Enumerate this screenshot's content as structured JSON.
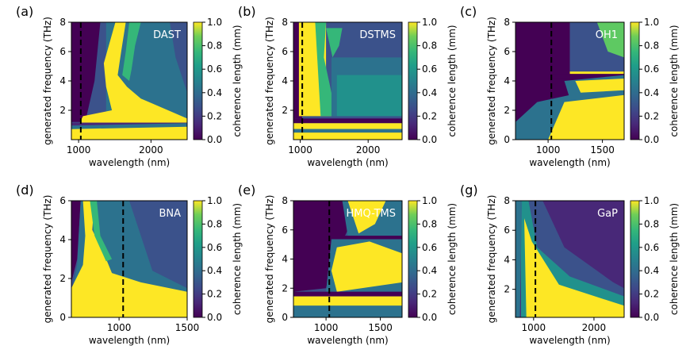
{
  "colorbar": {
    "label": "coherence length (mm)",
    "ticks": [
      "0.0",
      "0.2",
      "0.4",
      "0.6",
      "0.8",
      "1.0"
    ]
  },
  "chart_data": [
    {
      "type": "heatmap",
      "panel": "(a)",
      "material": "DAST",
      "xlabel": "wavelength (nm)",
      "ylabel": "generated frequency (THz)",
      "xlim": [
        900,
        2500
      ],
      "ylim": [
        0,
        8
      ],
      "xticks": [
        "1000",
        "2000"
      ],
      "yticks": [
        "2",
        "4",
        "6",
        "8"
      ],
      "dashed_line_x": 1030,
      "value_range": [
        0,
        1.0
      ]
    },
    {
      "type": "heatmap",
      "panel": "(b)",
      "material": "DSTMS",
      "xlabel": "wavelength (nm)",
      "ylabel": "generated frequency (THz)",
      "xlim": [
        900,
        2500
      ],
      "ylim": [
        0,
        8
      ],
      "xticks": [
        "1000",
        "2000"
      ],
      "yticks": [
        "2",
        "4",
        "6",
        "8"
      ],
      "dashed_line_x": 1030,
      "value_range": [
        0,
        1.0
      ]
    },
    {
      "type": "heatmap",
      "panel": "(c)",
      "material": "OH1",
      "xlabel": "wavelength (nm)",
      "ylabel": "generated frequency (THz)",
      "xlim": [
        700,
        1700
      ],
      "ylim": [
        0,
        8
      ],
      "xticks": [
        "1000",
        "1500"
      ],
      "yticks": [
        "0",
        "2",
        "4",
        "6",
        "8"
      ],
      "dashed_line_x": 1030,
      "value_range": [
        0,
        1.0
      ]
    },
    {
      "type": "heatmap",
      "panel": "(d)",
      "material": "BNA",
      "xlabel": "wavelength (nm)",
      "ylabel": "generated frequency (THz)",
      "xlim": [
        650,
        1500
      ],
      "ylim": [
        0,
        6
      ],
      "xticks": [
        "1000",
        "1500"
      ],
      "yticks": [
        "0",
        "2",
        "4",
        "6"
      ],
      "dashed_line_x": 1030,
      "value_range": [
        0,
        1.0
      ]
    },
    {
      "type": "heatmap",
      "panel": "(e)",
      "material": "HMQ-TMS",
      "xlabel": "wavelength (nm)",
      "ylabel": "generated frequency (THz)",
      "xlim": [
        700,
        1700
      ],
      "ylim": [
        0,
        8
      ],
      "xticks": [
        "1000",
        "1500"
      ],
      "yticks": [
        "0",
        "2",
        "4",
        "6",
        "8"
      ],
      "dashed_line_x": 1030,
      "value_range": [
        0,
        1.0
      ]
    },
    {
      "type": "heatmap",
      "panel": "(g)",
      "material": "GaP",
      "xlabel": "wavelength (nm)",
      "ylabel": "generated frequency (THz)",
      "xlim": [
        700,
        2500
      ],
      "ylim": [
        0.1,
        8
      ],
      "xticks": [
        "1000",
        "2000"
      ],
      "yticks": [
        "2",
        "4",
        "6",
        "8"
      ],
      "dashed_line_x": 1030,
      "value_range": [
        0,
        1.0
      ]
    }
  ]
}
